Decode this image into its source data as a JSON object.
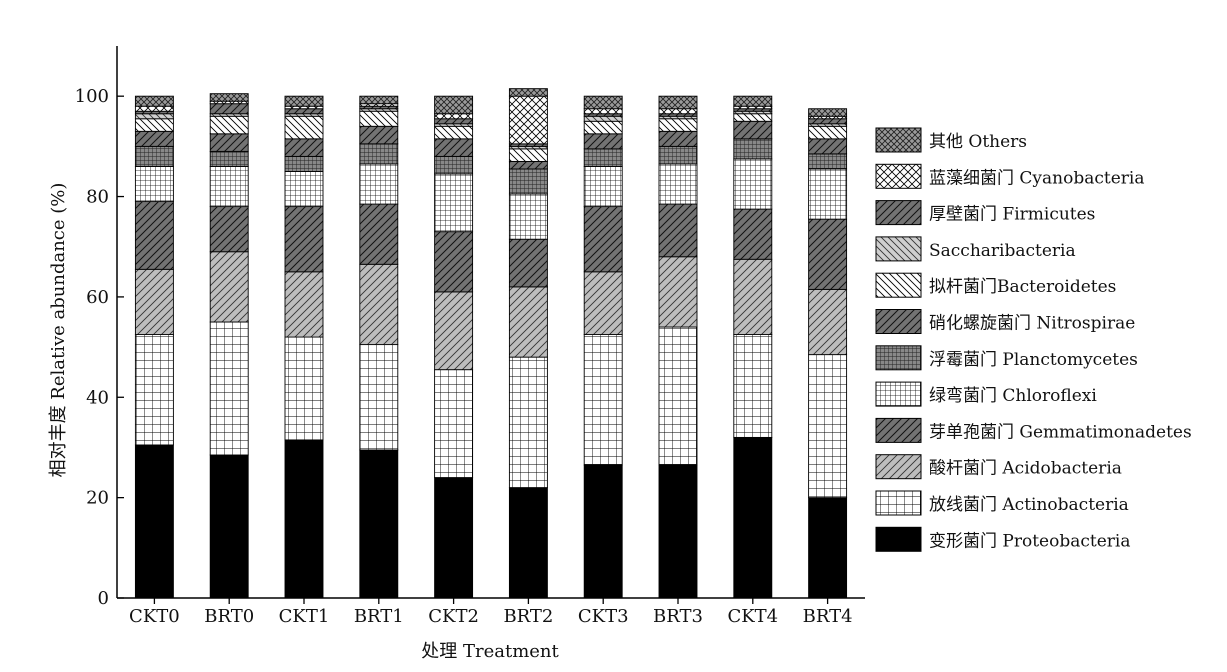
{
  "chart_data": {
    "type": "bar",
    "stacked": true,
    "xlabel": "处理 Treatment",
    "ylabel": "相对丰度 Relative abundance (%)",
    "ylim": [
      0,
      110
    ],
    "yticks": [
      0,
      20,
      40,
      60,
      80,
      100
    ],
    "grid": false,
    "legend_position": "right",
    "categories": [
      "CKT0",
      "BRT0",
      "CKT1",
      "BRT1",
      "CKT2",
      "BRT2",
      "CKT3",
      "BRT3",
      "CKT4",
      "BRT4"
    ],
    "series": [
      {
        "name": "变形菌门 Proteobacteria",
        "pattern": "solid",
        "values": [
          30.5,
          28.5,
          31.5,
          29.5,
          24.0,
          22.0,
          26.5,
          26.5,
          32.0,
          20.0
        ]
      },
      {
        "name": "放线菌门 Actinobacteria",
        "pattern": "grid",
        "values": [
          22.0,
          26.5,
          20.5,
          21.0,
          21.5,
          26.0,
          26.0,
          27.5,
          20.5,
          28.5
        ]
      },
      {
        "name": "酸杆菌门 Acidobacteria",
        "pattern": "diag-light",
        "values": [
          13.0,
          14.0,
          13.0,
          16.0,
          15.5,
          14.0,
          12.5,
          14.0,
          15.0,
          13.0
        ]
      },
      {
        "name": "芽单孢菌门 Gemmatimonadetes",
        "pattern": "diag-dark",
        "values": [
          13.5,
          9.0,
          13.0,
          12.0,
          12.0,
          9.5,
          13.0,
          10.5,
          10.0,
          14.0
        ]
      },
      {
        "name": "绿弯菌门 Chloroflexi",
        "pattern": "grid-fine",
        "values": [
          7.0,
          8.0,
          7.0,
          8.0,
          11.5,
          9.0,
          8.0,
          8.0,
          10.0,
          10.0
        ]
      },
      {
        "name": "浮霉菌门 Planctomycetes",
        "pattern": "dense-grid",
        "values": [
          4.0,
          3.0,
          3.0,
          4.0,
          3.5,
          5.0,
          3.5,
          3.5,
          4.0,
          3.0
        ]
      },
      {
        "name": "硝化螺旋菌门 Nitrospirae",
        "pattern": "diag-dark",
        "values": [
          3.0,
          3.5,
          3.5,
          3.5,
          3.5,
          1.5,
          3.0,
          3.0,
          3.5,
          3.0
        ]
      },
      {
        "name": "拟杆菌门Bacteroidetes",
        "pattern": "diag-sparse",
        "values": [
          2.5,
          3.5,
          4.5,
          3.0,
          2.5,
          2.5,
          2.5,
          2.5,
          1.5,
          2.5
        ]
      },
      {
        "name": "Saccharibacteria",
        "pattern": "diag-light-sparse",
        "values": [
          1.0,
          0.5,
          0.5,
          0.5,
          0.5,
          0.5,
          1.0,
          0.5,
          0.5,
          0.5
        ]
      },
      {
        "name": "厚壁菌门 Firmicutes",
        "pattern": "diag-dark",
        "values": [
          0.5,
          2.0,
          1.0,
          0.5,
          1.0,
          0.5,
          0.5,
          0.5,
          0.5,
          1.0
        ]
      },
      {
        "name": "蓝藻细菌门 Cyanobacteria",
        "pattern": "crosshatch",
        "values": [
          1.0,
          0.5,
          0.5,
          0.5,
          1.0,
          9.5,
          1.0,
          1.0,
          0.5,
          0.5
        ]
      },
      {
        "name": "其他 Others",
        "pattern": "crosshatch-gray",
        "values": [
          2.0,
          1.5,
          2.0,
          1.5,
          3.5,
          1.5,
          2.5,
          2.5,
          2.0,
          1.5
        ]
      }
    ]
  }
}
